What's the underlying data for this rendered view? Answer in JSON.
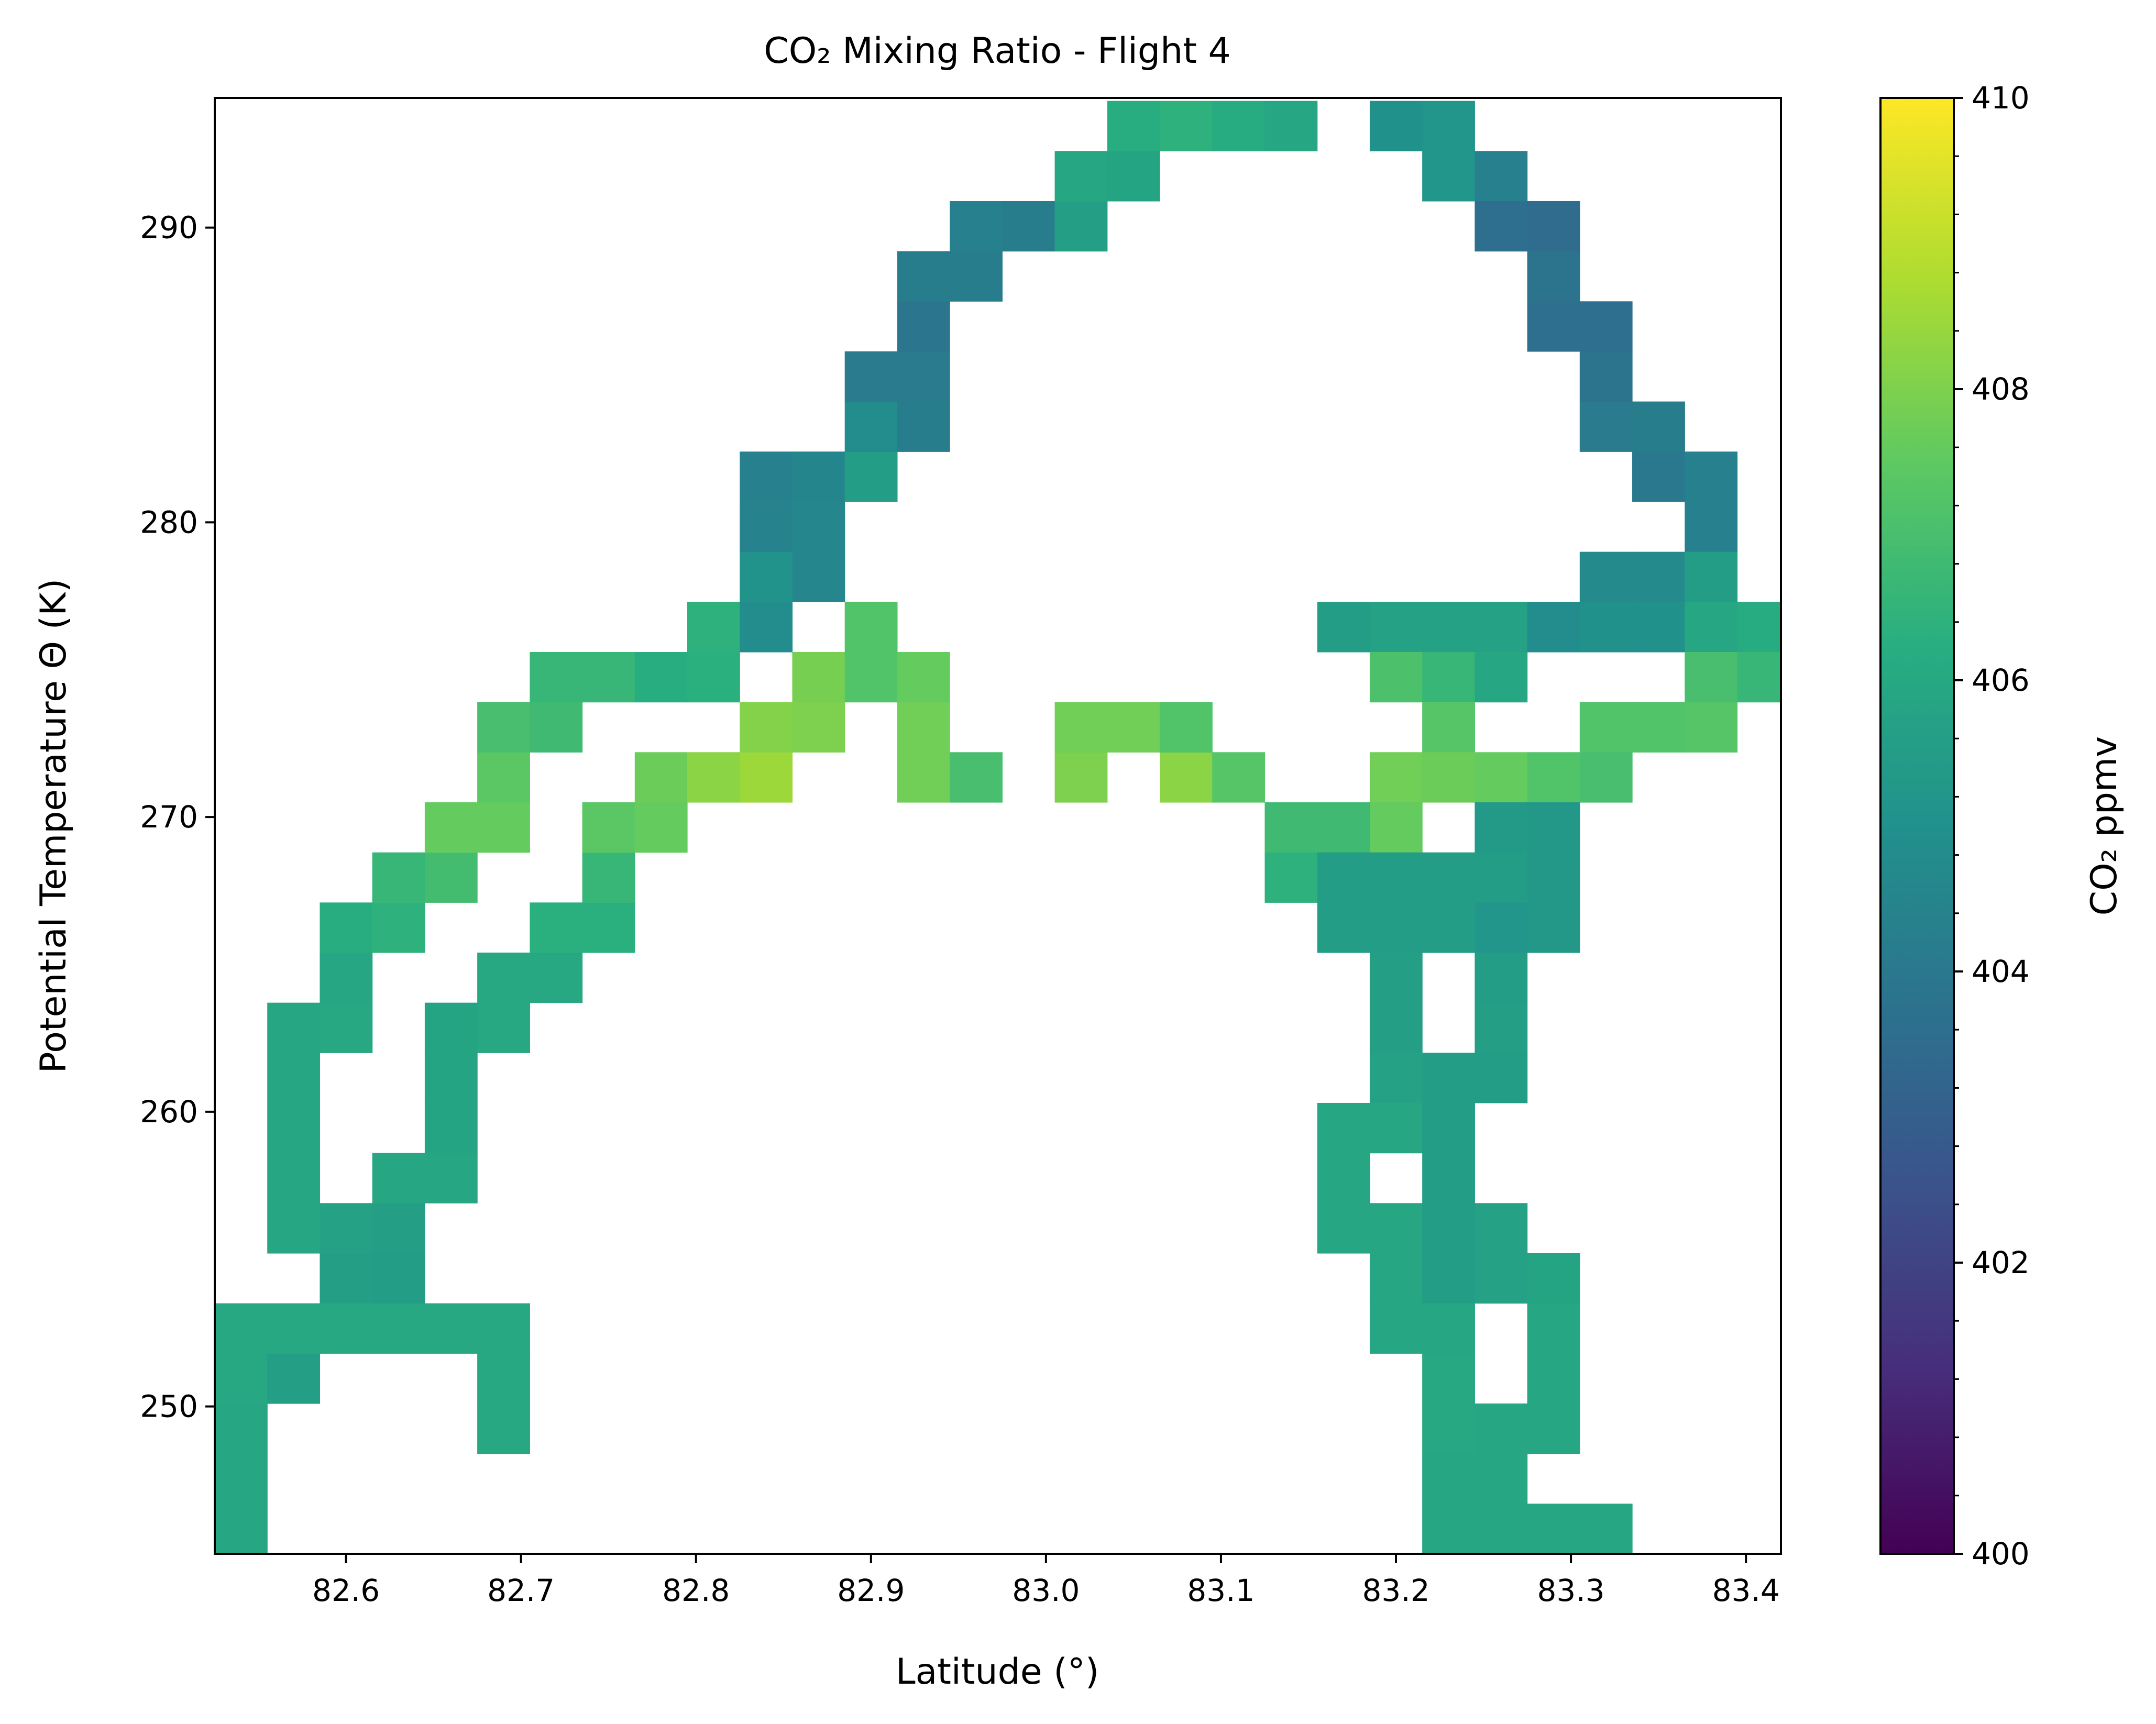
{
  "chart_data": {
    "type": "heatmap",
    "title": "CO₂ Mixing Ratio - Flight 4",
    "xlabel": "Latitude (°)",
    "ylabel": "Potential Temperature Θ (K)",
    "xlim": [
      82.525,
      83.42
    ],
    "ylim": [
      245.0,
      294.4
    ],
    "x_ticks": [
      82.6,
      82.7,
      82.8,
      82.9,
      83.0,
      83.1,
      83.2,
      83.3,
      83.4
    ],
    "x_tick_labels": [
      "82.6",
      "82.7",
      "82.8",
      "82.9",
      "83.0",
      "83.1",
      "83.2",
      "83.3",
      "83.4"
    ],
    "y_ticks": [
      250,
      260,
      270,
      280,
      290
    ],
    "y_tick_labels": [
      "250",
      "260",
      "270",
      "280",
      "290"
    ],
    "x_bin_edges": [
      82.525,
      82.555,
      82.585,
      82.615,
      82.645,
      82.675,
      82.705,
      82.735,
      82.765,
      82.795,
      82.825,
      82.855,
      82.885,
      82.915,
      82.945,
      82.975,
      83.005,
      83.035,
      83.065,
      83.095,
      83.125,
      83.155,
      83.185,
      83.215,
      83.245,
      83.275,
      83.305,
      83.335,
      83.365,
      83.395,
      83.425
    ],
    "y_bin_edges": [
      245.0,
      246.7,
      248.4,
      250.1,
      251.8,
      253.5,
      255.2,
      256.9,
      258.6,
      260.3,
      262.0,
      263.7,
      265.4,
      267.1,
      268.8,
      270.5,
      272.2,
      273.9,
      275.6,
      277.3,
      279.0,
      280.7,
      282.4,
      284.1,
      285.8,
      287.5,
      289.2,
      290.9,
      292.6,
      294.3
    ],
    "cells_note": "each cell is [column index, row index, CO2 ppmv]; column i spans x_bin_edges[i]..x_bin_edges[i+1], row j spans y_bin_edges[j]..y_bin_edges[j+1]",
    "cells": [
      [
        0,
        0,
        405.9
      ],
      [
        0,
        1,
        405.9
      ],
      [
        0,
        2,
        405.9
      ],
      [
        0,
        3,
        406.0
      ],
      [
        0,
        4,
        406.0
      ],
      [
        1,
        3,
        405.6
      ],
      [
        1,
        4,
        406.0
      ],
      [
        5,
        2,
        406.0
      ],
      [
        5,
        3,
        406.0
      ],
      [
        5,
        4,
        406.0
      ],
      [
        2,
        4,
        406.0
      ],
      [
        3,
        4,
        406.0
      ],
      [
        4,
        4,
        406.0
      ],
      [
        2,
        5,
        405.6
      ],
      [
        3,
        5,
        405.5
      ],
      [
        1,
        6,
        405.9
      ],
      [
        2,
        6,
        405.7
      ],
      [
        3,
        6,
        405.6
      ],
      [
        1,
        7,
        405.9
      ],
      [
        3,
        7,
        405.9
      ],
      [
        4,
        7,
        405.9
      ],
      [
        1,
        8,
        405.9
      ],
      [
        4,
        8,
        405.8
      ],
      [
        1,
        9,
        405.9
      ],
      [
        4,
        9,
        405.8
      ],
      [
        1,
        10,
        405.9
      ],
      [
        2,
        10,
        406.0
      ],
      [
        4,
        10,
        405.8
      ],
      [
        5,
        10,
        406.0
      ],
      [
        2,
        11,
        405.9
      ],
      [
        5,
        11,
        406.0
      ],
      [
        6,
        11,
        406.0
      ],
      [
        2,
        12,
        406.2
      ],
      [
        3,
        12,
        406.4
      ],
      [
        6,
        12,
        406.3
      ],
      [
        7,
        12,
        406.3
      ],
      [
        3,
        13,
        406.6
      ],
      [
        4,
        13,
        406.9
      ],
      [
        7,
        13,
        406.6
      ],
      [
        4,
        14,
        407.6
      ],
      [
        5,
        14,
        407.6
      ],
      [
        7,
        14,
        407.4
      ],
      [
        8,
        14,
        407.6
      ],
      [
        5,
        15,
        407.4
      ],
      [
        8,
        15,
        407.7
      ],
      [
        9,
        15,
        408.2
      ],
      [
        10,
        15,
        408.5
      ],
      [
        13,
        15,
        407.8
      ],
      [
        14,
        15,
        407.0
      ],
      [
        16,
        15,
        408.0
      ],
      [
        18,
        15,
        408.2
      ],
      [
        19,
        15,
        407.3
      ],
      [
        5,
        16,
        407.0
      ],
      [
        6,
        16,
        406.8
      ],
      [
        10,
        16,
        408.1
      ],
      [
        11,
        16,
        408.0
      ],
      [
        13,
        16,
        407.8
      ],
      [
        16,
        16,
        407.8
      ],
      [
        17,
        16,
        407.8
      ],
      [
        18,
        16,
        407.2
      ],
      [
        6,
        17,
        406.6
      ],
      [
        7,
        17,
        406.6
      ],
      [
        8,
        17,
        406.2
      ],
      [
        9,
        17,
        406.3
      ],
      [
        11,
        17,
        407.9
      ],
      [
        12,
        17,
        407.2
      ],
      [
        13,
        17,
        407.6
      ],
      [
        9,
        18,
        406.4
      ],
      [
        10,
        18,
        404.8
      ],
      [
        12,
        18,
        407.2
      ],
      [
        10,
        19,
        405.1
      ],
      [
        11,
        19,
        404.6
      ],
      [
        10,
        20,
        404.4
      ],
      [
        11,
        20,
        404.6
      ],
      [
        10,
        21,
        404.3
      ],
      [
        11,
        21,
        404.5
      ],
      [
        12,
        21,
        405.5
      ],
      [
        12,
        22,
        404.8
      ],
      [
        13,
        22,
        404.2
      ],
      [
        12,
        23,
        404.1
      ],
      [
        13,
        23,
        404.1
      ],
      [
        13,
        24,
        403.9
      ],
      [
        13,
        25,
        404.2
      ],
      [
        14,
        25,
        404.2
      ],
      [
        14,
        26,
        404.3
      ],
      [
        15,
        26,
        404.2
      ],
      [
        16,
        26,
        405.6
      ],
      [
        16,
        27,
        405.9
      ],
      [
        17,
        27,
        405.8
      ],
      [
        17,
        28,
        406.2
      ],
      [
        18,
        28,
        406.4
      ],
      [
        19,
        28,
        406.1
      ],
      [
        20,
        28,
        405.9
      ],
      [
        19,
        29,
        406.4
      ],
      [
        20,
        29,
        405.9
      ],
      [
        21,
        29,
        405.6
      ],
      [
        22,
        29,
        405.5
      ],
      [
        23,
        29,
        405.3
      ],
      [
        22,
        28,
        405.0
      ],
      [
        23,
        28,
        405.2
      ],
      [
        23,
        27,
        405.2
      ],
      [
        24,
        27,
        404.3
      ],
      [
        24,
        26,
        403.6
      ],
      [
        25,
        26,
        403.5
      ],
      [
        25,
        25,
        403.8
      ],
      [
        25,
        24,
        403.6
      ],
      [
        26,
        24,
        403.6
      ],
      [
        26,
        23,
        403.8
      ],
      [
        26,
        22,
        404.1
      ],
      [
        27,
        22,
        404.2
      ],
      [
        27,
        21,
        404.0
      ],
      [
        28,
        21,
        404.3
      ],
      [
        28,
        20,
        404.3
      ],
      [
        26,
        19,
        404.7
      ],
      [
        27,
        19,
        404.7
      ],
      [
        28,
        19,
        405.5
      ],
      [
        21,
        18,
        405.5
      ],
      [
        22,
        18,
        405.7
      ],
      [
        23,
        18,
        405.7
      ],
      [
        24,
        18,
        405.7
      ],
      [
        25,
        18,
        404.8
      ],
      [
        26,
        18,
        405.0
      ],
      [
        27,
        18,
        405.0
      ],
      [
        28,
        18,
        405.9
      ],
      [
        29,
        18,
        406.1
      ],
      [
        22,
        17,
        407.1
      ],
      [
        23,
        17,
        406.6
      ],
      [
        24,
        17,
        405.9
      ],
      [
        28,
        17,
        407.0
      ],
      [
        29,
        17,
        406.6
      ],
      [
        23,
        16,
        407.3
      ],
      [
        26,
        16,
        407.2
      ],
      [
        27,
        16,
        407.2
      ],
      [
        28,
        16,
        407.3
      ],
      [
        22,
        15,
        407.8
      ],
      [
        23,
        15,
        407.7
      ],
      [
        24,
        15,
        407.6
      ],
      [
        25,
        15,
        407.2
      ],
      [
        26,
        15,
        407.0
      ],
      [
        22,
        14,
        407.6
      ],
      [
        24,
        14,
        405.4
      ],
      [
        25,
        14,
        405.3
      ],
      [
        20,
        14,
        406.8
      ],
      [
        21,
        14,
        406.8
      ],
      [
        20,
        13,
        406.4
      ],
      [
        21,
        13,
        405.5
      ],
      [
        22,
        13,
        405.5
      ],
      [
        23,
        13,
        405.5
      ],
      [
        24,
        13,
        405.5
      ],
      [
        25,
        13,
        405.3
      ],
      [
        21,
        12,
        405.5
      ],
      [
        22,
        12,
        405.5
      ],
      [
        23,
        12,
        405.5
      ],
      [
        24,
        12,
        405.2
      ],
      [
        25,
        12,
        405.3
      ],
      [
        22,
        11,
        405.6
      ],
      [
        24,
        11,
        405.5
      ],
      [
        22,
        10,
        405.6
      ],
      [
        24,
        10,
        405.6
      ],
      [
        22,
        9,
        405.7
      ],
      [
        23,
        9,
        405.5
      ],
      [
        24,
        9,
        405.5
      ],
      [
        21,
        8,
        405.9
      ],
      [
        22,
        8,
        405.9
      ],
      [
        23,
        8,
        405.5
      ],
      [
        21,
        7,
        405.9
      ],
      [
        23,
        7,
        405.5
      ],
      [
        21,
        6,
        405.9
      ],
      [
        22,
        6,
        405.9
      ],
      [
        23,
        6,
        405.5
      ],
      [
        24,
        6,
        405.7
      ],
      [
        22,
        5,
        405.9
      ],
      [
        23,
        5,
        405.5
      ],
      [
        24,
        5,
        405.7
      ],
      [
        25,
        5,
        405.8
      ],
      [
        22,
        4,
        405.9
      ],
      [
        23,
        4,
        405.9
      ],
      [
        25,
        4,
        405.9
      ],
      [
        23,
        3,
        406.0
      ],
      [
        25,
        3,
        405.9
      ],
      [
        23,
        2,
        406.0
      ],
      [
        24,
        2,
        405.9
      ],
      [
        25,
        2,
        405.9
      ],
      [
        23,
        1,
        405.9
      ],
      [
        24,
        1,
        405.9
      ],
      [
        23,
        0,
        405.9
      ],
      [
        24,
        0,
        405.9
      ],
      [
        25,
        0,
        405.9
      ],
      [
        26,
        0,
        405.9
      ]
    ],
    "colorbar": {
      "label": "CO₂ ppmv",
      "colormap": "viridis",
      "range": [
        400,
        410
      ],
      "ticks": [
        400,
        402,
        404,
        406,
        408,
        410
      ],
      "tick_labels": [
        "400",
        "402",
        "404",
        "406",
        "408",
        "410"
      ]
    },
    "grid": false,
    "empty_cells_color": "#ffffff"
  }
}
